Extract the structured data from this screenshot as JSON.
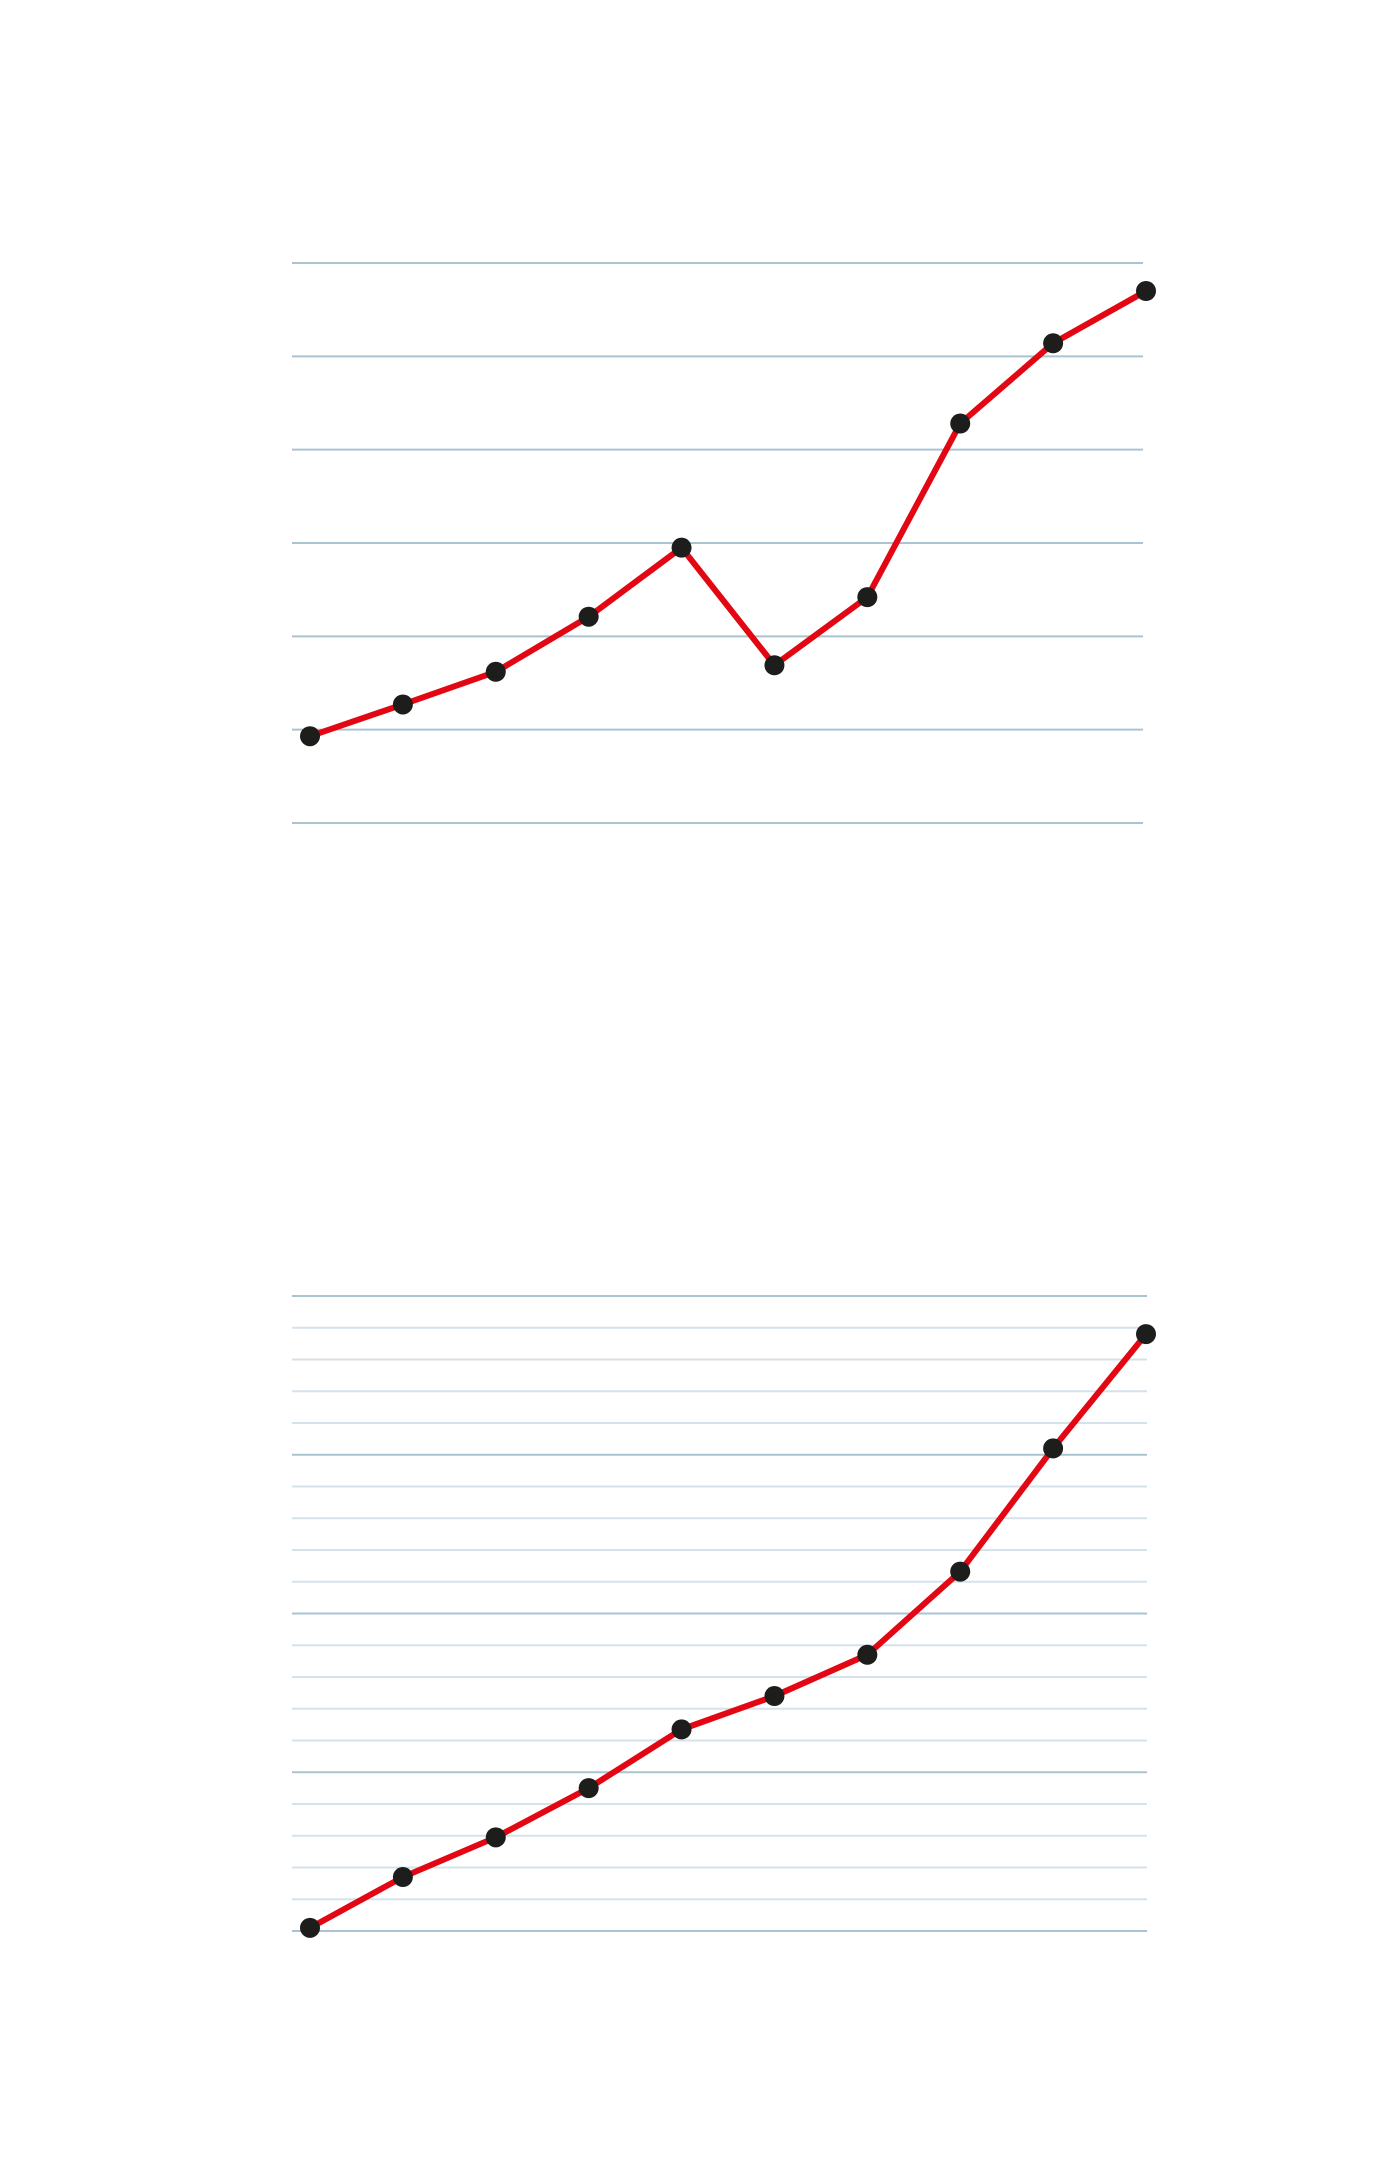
{
  "colors": {
    "line": "#e30613",
    "marker": "#1d1d1b",
    "grid_major": "#a9c3d1",
    "grid_minor": "#d5e2ea",
    "background": "#ffffff"
  },
  "chart_data": [
    {
      "type": "line",
      "title": "",
      "xlabel": "",
      "ylabel": "",
      "grid": "horizontal",
      "x": [
        1,
        2,
        3,
        4,
        5,
        6,
        7,
        8,
        9,
        10
      ],
      "ylim": [
        0,
        6
      ],
      "gridlines": [
        0,
        1,
        2,
        3,
        4,
        5,
        6
      ],
      "series": [
        {
          "values": [
            0.93,
            1.27,
            1.62,
            2.21,
            2.95,
            1.69,
            2.42,
            4.28,
            5.14,
            5.7
          ]
        }
      ]
    },
    {
      "type": "line",
      "title": "",
      "xlabel": "",
      "ylabel": "",
      "grid": "horizontal",
      "x": [
        1,
        2,
        3,
        4,
        5,
        6,
        7,
        8,
        9,
        10
      ],
      "ylim": [
        0,
        20
      ],
      "gridlines_major": [
        0,
        5,
        10,
        15,
        20
      ],
      "gridlines_minor": [
        1,
        2,
        3,
        4,
        6,
        7,
        8,
        9,
        11,
        12,
        13,
        14,
        16,
        17,
        18,
        19
      ],
      "series": [
        {
          "values": [
            0.1,
            1.7,
            2.95,
            4.5,
            6.35,
            7.4,
            8.7,
            11.32,
            15.2,
            18.8
          ]
        }
      ]
    }
  ]
}
